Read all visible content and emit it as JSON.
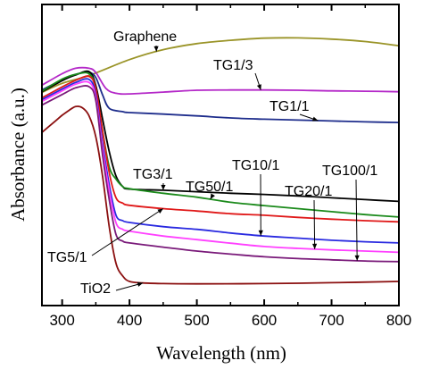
{
  "chart_data": {
    "type": "line",
    "xlabel": "Wavelength (nm)",
    "ylabel": "Absorbance (a.u.)",
    "xlim": [
      270,
      800
    ],
    "ylim": [
      0,
      1
    ],
    "x_ticks": [
      300,
      400,
      500,
      600,
      700,
      800
    ],
    "y_ticks_labeled": false,
    "grid": false,
    "legend": "inline annotations",
    "series": [
      {
        "name": "Graphene",
        "color": "#9a9428",
        "points": [
          [
            270,
            0.708
          ],
          [
            300,
            0.738
          ],
          [
            340,
            0.764
          ],
          [
            400,
            0.817
          ],
          [
            450,
            0.85
          ],
          [
            500,
            0.87
          ],
          [
            550,
            0.881
          ],
          [
            600,
            0.888
          ],
          [
            650,
            0.889
          ],
          [
            700,
            0.885
          ],
          [
            750,
            0.877
          ],
          [
            800,
            0.863
          ]
        ]
      },
      {
        "name": "TG1/3",
        "color": "#b428c8",
        "points": [
          [
            270,
            0.732
          ],
          [
            300,
            0.77
          ],
          [
            320,
            0.788
          ],
          [
            340,
            0.788
          ],
          [
            350,
            0.774
          ],
          [
            365,
            0.721
          ],
          [
            380,
            0.705
          ],
          [
            400,
            0.703
          ],
          [
            450,
            0.709
          ],
          [
            500,
            0.715
          ],
          [
            550,
            0.716
          ],
          [
            600,
            0.716
          ],
          [
            650,
            0.715
          ],
          [
            700,
            0.713
          ],
          [
            750,
            0.712
          ],
          [
            800,
            0.71
          ]
        ]
      },
      {
        "name": "TG1/1",
        "color": "#1e2d8c",
        "points": [
          [
            270,
            0.716
          ],
          [
            300,
            0.75
          ],
          [
            320,
            0.768
          ],
          [
            340,
            0.774
          ],
          [
            350,
            0.757
          ],
          [
            360,
            0.7
          ],
          [
            370,
            0.655
          ],
          [
            390,
            0.644
          ],
          [
            400,
            0.641
          ],
          [
            450,
            0.636
          ],
          [
            500,
            0.63
          ],
          [
            550,
            0.623
          ],
          [
            600,
            0.619
          ],
          [
            650,
            0.616
          ],
          [
            700,
            0.613
          ],
          [
            750,
            0.61
          ],
          [
            800,
            0.608
          ]
        ]
      },
      {
        "name": "TG3/1",
        "color": "#000000",
        "points": [
          [
            270,
            0.71
          ],
          [
            300,
            0.747
          ],
          [
            320,
            0.766
          ],
          [
            340,
            0.777
          ],
          [
            350,
            0.73
          ],
          [
            360,
            0.62
          ],
          [
            370,
            0.51
          ],
          [
            380,
            0.43
          ],
          [
            390,
            0.395
          ],
          [
            400,
            0.387
          ],
          [
            450,
            0.383
          ],
          [
            500,
            0.378
          ],
          [
            550,
            0.373
          ],
          [
            600,
            0.369
          ],
          [
            650,
            0.364
          ],
          [
            700,
            0.358
          ],
          [
            750,
            0.352
          ],
          [
            800,
            0.346
          ]
        ]
      },
      {
        "name": "TG50/1",
        "color": "#1b8a1b",
        "points": [
          [
            270,
            0.712
          ],
          [
            300,
            0.752
          ],
          [
            320,
            0.768
          ],
          [
            340,
            0.77
          ],
          [
            350,
            0.72
          ],
          [
            360,
            0.58
          ],
          [
            370,
            0.46
          ],
          [
            380,
            0.42
          ],
          [
            390,
            0.395
          ],
          [
            400,
            0.388
          ],
          [
            450,
            0.373
          ],
          [
            500,
            0.36
          ],
          [
            550,
            0.343
          ],
          [
            600,
            0.332
          ],
          [
            650,
            0.322
          ],
          [
            700,
            0.312
          ],
          [
            750,
            0.302
          ],
          [
            800,
            0.294
          ]
        ]
      },
      {
        "name": "TG5/1",
        "color": "#e01818",
        "points": [
          [
            270,
            0.69
          ],
          [
            300,
            0.726
          ],
          [
            320,
            0.748
          ],
          [
            340,
            0.761
          ],
          [
            350,
            0.72
          ],
          [
            360,
            0.58
          ],
          [
            370,
            0.44
          ],
          [
            380,
            0.358
          ],
          [
            390,
            0.34
          ],
          [
            400,
            0.333
          ],
          [
            450,
            0.322
          ],
          [
            500,
            0.314
          ],
          [
            550,
            0.305
          ],
          [
            600,
            0.3
          ],
          [
            650,
            0.293
          ],
          [
            700,
            0.287
          ],
          [
            750,
            0.282
          ],
          [
            800,
            0.278
          ]
        ]
      },
      {
        "name": "TG10/1",
        "color": "#2a2ae0",
        "points": [
          [
            270,
            0.684
          ],
          [
            300,
            0.719
          ],
          [
            320,
            0.741
          ],
          [
            340,
            0.751
          ],
          [
            350,
            0.7
          ],
          [
            360,
            0.54
          ],
          [
            370,
            0.4
          ],
          [
            380,
            0.3
          ],
          [
            390,
            0.282
          ],
          [
            400,
            0.276
          ],
          [
            450,
            0.262
          ],
          [
            500,
            0.253
          ],
          [
            550,
            0.241
          ],
          [
            600,
            0.231
          ],
          [
            650,
            0.224
          ],
          [
            700,
            0.217
          ],
          [
            750,
            0.212
          ],
          [
            800,
            0.208
          ]
        ]
      },
      {
        "name": "TG20/1",
        "color": "#ff40ff",
        "points": [
          [
            270,
            0.678
          ],
          [
            300,
            0.713
          ],
          [
            320,
            0.735
          ],
          [
            340,
            0.741
          ],
          [
            350,
            0.69
          ],
          [
            360,
            0.52
          ],
          [
            370,
            0.38
          ],
          [
            380,
            0.275
          ],
          [
            390,
            0.253
          ],
          [
            400,
            0.247
          ],
          [
            450,
            0.231
          ],
          [
            500,
            0.219
          ],
          [
            550,
            0.207
          ],
          [
            600,
            0.196
          ],
          [
            650,
            0.19
          ],
          [
            700,
            0.185
          ],
          [
            750,
            0.181
          ],
          [
            800,
            0.177
          ]
        ]
      },
      {
        "name": "TG100/1",
        "color": "#7a1a7a",
        "points": [
          [
            270,
            0.666
          ],
          [
            300,
            0.701
          ],
          [
            320,
            0.723
          ],
          [
            340,
            0.727
          ],
          [
            350,
            0.68
          ],
          [
            360,
            0.5
          ],
          [
            370,
            0.35
          ],
          [
            380,
            0.236
          ],
          [
            390,
            0.214
          ],
          [
            400,
            0.208
          ],
          [
            450,
            0.194
          ],
          [
            500,
            0.181
          ],
          [
            550,
            0.171
          ],
          [
            600,
            0.162
          ],
          [
            650,
            0.156
          ],
          [
            700,
            0.152
          ],
          [
            750,
            0.148
          ],
          [
            800,
            0.146
          ]
        ]
      },
      {
        "name": "TiO2",
        "color": "#8b1010",
        "points": [
          [
            270,
            0.575
          ],
          [
            290,
            0.613
          ],
          [
            300,
            0.632
          ],
          [
            310,
            0.648
          ],
          [
            320,
            0.661
          ],
          [
            330,
            0.657
          ],
          [
            340,
            0.63
          ],
          [
            350,
            0.56
          ],
          [
            360,
            0.43
          ],
          [
            370,
            0.26
          ],
          [
            380,
            0.14
          ],
          [
            390,
            0.098
          ],
          [
            400,
            0.08
          ],
          [
            420,
            0.075
          ],
          [
            450,
            0.073
          ],
          [
            500,
            0.072
          ],
          [
            600,
            0.073
          ],
          [
            700,
            0.076
          ],
          [
            800,
            0.08
          ]
        ]
      }
    ],
    "annotations": [
      {
        "text": "Graphene",
        "series": "Graphene",
        "at_x": 440
      },
      {
        "text": "TG1/3",
        "series": "TG1/3",
        "at_x": 595
      },
      {
        "text": "TG1/1",
        "series": "TG1/1",
        "at_x": 680
      },
      {
        "text": "TG3/1",
        "series": "TG3/1",
        "at_x": 450
      },
      {
        "text": "TG50/1",
        "series": "TG50/1",
        "at_x": 520
      },
      {
        "text": "TG10/1",
        "series": "TG10/1",
        "at_x": 595
      },
      {
        "text": "TG20/1",
        "series": "TG20/1",
        "at_x": 675
      },
      {
        "text": "TG100/1",
        "series": "TG100/1",
        "at_x": 738
      },
      {
        "text": "TG5/1",
        "series": "TG5/1",
        "at_x": 450
      },
      {
        "text": "TiO2",
        "series": "TiO2",
        "at_x": 420
      }
    ]
  }
}
